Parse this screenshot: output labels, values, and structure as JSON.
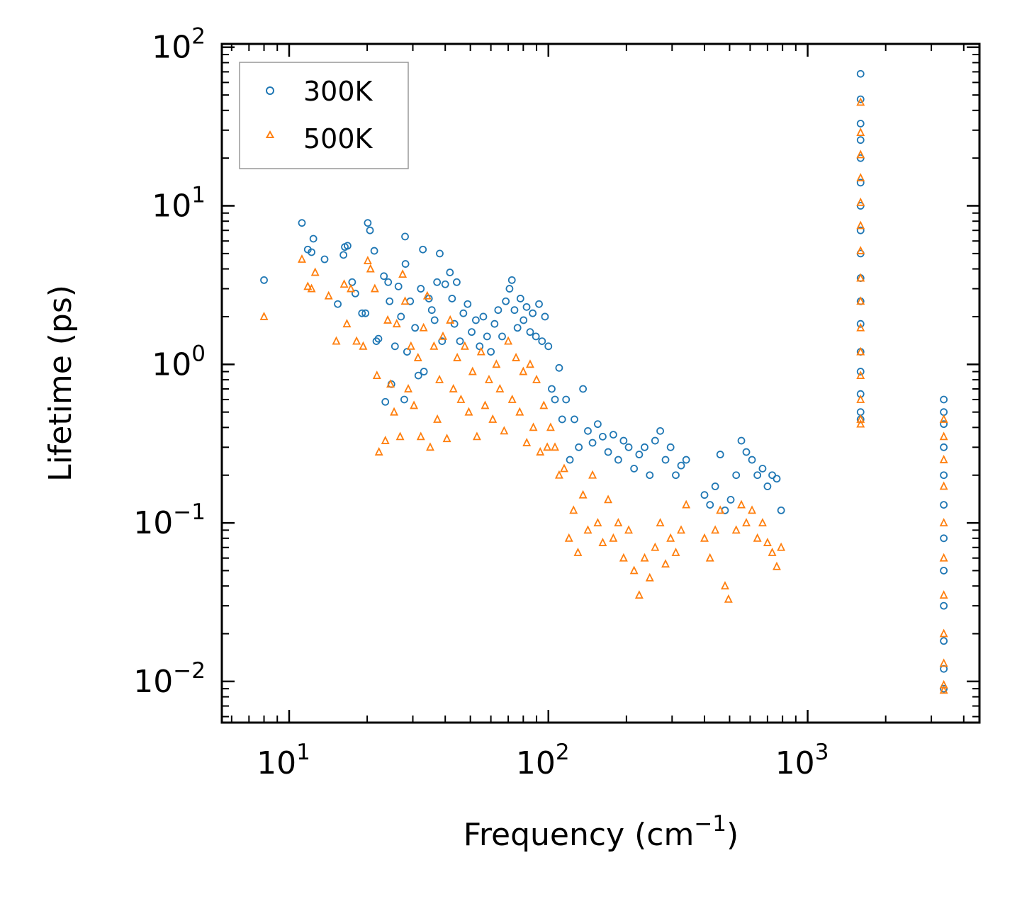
{
  "chart_data": {
    "type": "scatter",
    "title": "",
    "xlabel": "Frequency (cm⁻¹)",
    "ylabel": "Lifetime (ps)",
    "xscale": "log",
    "yscale": "log",
    "xlim": [
      5.5,
      4600
    ],
    "ylim": [
      0.0055,
      105
    ],
    "x_ticks": [
      {
        "value": 10,
        "label": "10",
        "exp": "1"
      },
      {
        "value": 100,
        "label": "10",
        "exp": "2"
      },
      {
        "value": 1000,
        "label": "10",
        "exp": "3"
      }
    ],
    "y_ticks": [
      {
        "value": 0.01,
        "label": "10",
        "exp": "−2"
      },
      {
        "value": 0.1,
        "label": "10",
        "exp": "−1"
      },
      {
        "value": 1,
        "label": "10",
        "exp": "0"
      },
      {
        "value": 10,
        "label": "10",
        "exp": "1"
      },
      {
        "value": 100,
        "label": "10",
        "exp": "2"
      }
    ],
    "legend_position": "top-left",
    "series": [
      {
        "name": "300K",
        "marker": "circle",
        "color": "#1f77b4",
        "points": [
          [
            8.0,
            3.4
          ],
          [
            11.2,
            7.8
          ],
          [
            11.8,
            5.3
          ],
          [
            12.2,
            5.1
          ],
          [
            12.4,
            6.2
          ],
          [
            13.7,
            4.6
          ],
          [
            15.4,
            2.4
          ],
          [
            16.2,
            4.9
          ],
          [
            16.4,
            5.5
          ],
          [
            16.8,
            5.6
          ],
          [
            17.5,
            3.3
          ],
          [
            18.0,
            2.8
          ],
          [
            19.1,
            2.1
          ],
          [
            19.7,
            2.1
          ],
          [
            20.1,
            7.8
          ],
          [
            20.5,
            7.0
          ],
          [
            21.3,
            5.2
          ],
          [
            21.7,
            1.4
          ],
          [
            22.1,
            1.45
          ],
          [
            23.2,
            3.6
          ],
          [
            23.5,
            0.58
          ],
          [
            24.1,
            3.3
          ],
          [
            24.4,
            2.5
          ],
          [
            24.8,
            0.75
          ],
          [
            25.6,
            1.3
          ],
          [
            26.4,
            3.1
          ],
          [
            27.0,
            2.0
          ],
          [
            27.8,
            0.6
          ],
          [
            28.0,
            6.4
          ],
          [
            28.1,
            4.3
          ],
          [
            28.5,
            1.2
          ],
          [
            29.3,
            2.5
          ],
          [
            30.6,
            1.7
          ],
          [
            31.5,
            0.85
          ],
          [
            32.2,
            3.0
          ],
          [
            32.8,
            5.3
          ],
          [
            33.1,
            0.9
          ],
          [
            34.6,
            2.6
          ],
          [
            35.5,
            2.2
          ],
          [
            36.4,
            1.9
          ],
          [
            37.2,
            3.3
          ],
          [
            38.1,
            5.0
          ],
          [
            38.9,
            1.4
          ],
          [
            40.0,
            3.2
          ],
          [
            41.7,
            3.8
          ],
          [
            42.5,
            2.6
          ],
          [
            43.4,
            1.8
          ],
          [
            44.3,
            3.3
          ],
          [
            45.6,
            1.4
          ],
          [
            47.0,
            2.1
          ],
          [
            48.8,
            2.4
          ],
          [
            50.6,
            1.6
          ],
          [
            52.5,
            1.9
          ],
          [
            54.3,
            1.3
          ],
          [
            56.1,
            2.0
          ],
          [
            58.0,
            1.5
          ],
          [
            60.0,
            1.2
          ],
          [
            62.0,
            1.8
          ],
          [
            64.0,
            2.2
          ],
          [
            66.3,
            1.5
          ],
          [
            68.5,
            2.5
          ],
          [
            70.8,
            3.0
          ],
          [
            72.3,
            3.4
          ],
          [
            74.0,
            2.2
          ],
          [
            76.0,
            1.7
          ],
          [
            78.0,
            2.6
          ],
          [
            80.2,
            1.9
          ],
          [
            82.4,
            2.3
          ],
          [
            85.0,
            1.6
          ],
          [
            87.0,
            2.1
          ],
          [
            89.5,
            1.5
          ],
          [
            92.0,
            2.4
          ],
          [
            94.5,
            1.4
          ],
          [
            97.0,
            2.0
          ],
          [
            100.0,
            1.3
          ],
          [
            103.0,
            0.7
          ],
          [
            106.0,
            0.6
          ],
          [
            110.0,
            0.95
          ],
          [
            113.0,
            0.45
          ],
          [
            117.0,
            0.6
          ],
          [
            121.0,
            0.25
          ],
          [
            126.0,
            0.45
          ],
          [
            131.0,
            0.3
          ],
          [
            136.0,
            0.7
          ],
          [
            142.0,
            0.38
          ],
          [
            148.0,
            0.32
          ],
          [
            155.0,
            0.42
          ],
          [
            162.0,
            0.35
          ],
          [
            170.0,
            0.28
          ],
          [
            178.0,
            0.36
          ],
          [
            186.0,
            0.25
          ],
          [
            195.0,
            0.33
          ],
          [
            204.0,
            0.3
          ],
          [
            214.0,
            0.22
          ],
          [
            224.0,
            0.27
          ],
          [
            235.0,
            0.3
          ],
          [
            246.0,
            0.2
          ],
          [
            258.0,
            0.33
          ],
          [
            270.0,
            0.38
          ],
          [
            283.0,
            0.25
          ],
          [
            296.0,
            0.3
          ],
          [
            310.0,
            0.2
          ],
          [
            325.0,
            0.23
          ],
          [
            340.0,
            0.25
          ],
          [
            400.0,
            0.15
          ],
          [
            420.0,
            0.13
          ],
          [
            440.0,
            0.17
          ],
          [
            460.0,
            0.27
          ],
          [
            480.0,
            0.12
          ],
          [
            505.0,
            0.14
          ],
          [
            530.0,
            0.2
          ],
          [
            555.0,
            0.33
          ],
          [
            580.0,
            0.28
          ],
          [
            610.0,
            0.25
          ],
          [
            640.0,
            0.2
          ],
          [
            670.0,
            0.22
          ],
          [
            700.0,
            0.17
          ],
          [
            730.0,
            0.2
          ],
          [
            760.0,
            0.19
          ],
          [
            790.0,
            0.12
          ],
          [
            1600.0,
            68.0
          ],
          [
            1600.0,
            47.0
          ],
          [
            1600.0,
            33.0
          ],
          [
            1600.0,
            26.0
          ],
          [
            1600.0,
            20.0
          ],
          [
            1600.0,
            14.0
          ],
          [
            1600.0,
            10.0
          ],
          [
            1600.0,
            7.0
          ],
          [
            1600.0,
            5.0
          ],
          [
            1600.0,
            3.5
          ],
          [
            1600.0,
            2.5
          ],
          [
            1600.0,
            1.8
          ],
          [
            1600.0,
            1.2
          ],
          [
            1600.0,
            0.9
          ],
          [
            1600.0,
            0.65
          ],
          [
            1600.0,
            0.5
          ],
          [
            1600.0,
            0.45
          ],
          [
            3350.0,
            0.6
          ],
          [
            3350.0,
            0.5
          ],
          [
            3350.0,
            0.42
          ],
          [
            3350.0,
            0.3
          ],
          [
            3350.0,
            0.2
          ],
          [
            3350.0,
            0.13
          ],
          [
            3350.0,
            0.08
          ],
          [
            3350.0,
            0.05
          ],
          [
            3350.0,
            0.03
          ],
          [
            3350.0,
            0.018
          ],
          [
            3350.0,
            0.012
          ],
          [
            3350.0,
            0.009
          ]
        ]
      },
      {
        "name": "500K",
        "marker": "triangle",
        "color": "#ff7f0e",
        "points": [
          [
            8.0,
            2.0
          ],
          [
            11.2,
            4.6
          ],
          [
            11.8,
            3.1
          ],
          [
            12.2,
            3.0
          ],
          [
            12.6,
            3.8
          ],
          [
            14.2,
            2.7
          ],
          [
            15.2,
            1.4
          ],
          [
            16.3,
            3.2
          ],
          [
            16.7,
            1.8
          ],
          [
            17.3,
            3.0
          ],
          [
            18.2,
            1.4
          ],
          [
            19.3,
            1.3
          ],
          [
            20.1,
            4.5
          ],
          [
            20.6,
            4.0
          ],
          [
            21.4,
            3.0
          ],
          [
            21.8,
            0.85
          ],
          [
            22.2,
            0.28
          ],
          [
            23.5,
            0.33
          ],
          [
            24.0,
            1.9
          ],
          [
            24.6,
            0.75
          ],
          [
            25.4,
            0.5
          ],
          [
            26.0,
            1.8
          ],
          [
            26.8,
            0.35
          ],
          [
            27.4,
            3.7
          ],
          [
            28.0,
            2.5
          ],
          [
            28.8,
            0.7
          ],
          [
            29.5,
            1.3
          ],
          [
            30.3,
            0.55
          ],
          [
            31.4,
            1.1
          ],
          [
            32.2,
            0.35
          ],
          [
            33.0,
            1.7
          ],
          [
            34.1,
            2.7
          ],
          [
            35.0,
            0.3
          ],
          [
            36.2,
            1.3
          ],
          [
            37.3,
            0.45
          ],
          [
            38.0,
            0.8
          ],
          [
            39.2,
            1.5
          ],
          [
            40.6,
            0.34
          ],
          [
            41.8,
            1.9
          ],
          [
            43.0,
            0.7
          ],
          [
            44.5,
            1.1
          ],
          [
            46.0,
            0.6
          ],
          [
            47.6,
            1.3
          ],
          [
            49.3,
            0.5
          ],
          [
            51.0,
            0.9
          ],
          [
            53.0,
            0.35
          ],
          [
            55.0,
            1.2
          ],
          [
            57.0,
            0.55
          ],
          [
            59.0,
            0.8
          ],
          [
            61.0,
            0.45
          ],
          [
            63.0,
            1.0
          ],
          [
            65.0,
            0.7
          ],
          [
            67.5,
            0.38
          ],
          [
            70.0,
            1.4
          ],
          [
            72.5,
            0.6
          ],
          [
            75.0,
            1.1
          ],
          [
            77.5,
            0.5
          ],
          [
            80.0,
            0.9
          ],
          [
            82.5,
            0.32
          ],
          [
            85.0,
            1.0
          ],
          [
            87.5,
            0.4
          ],
          [
            90.0,
            0.8
          ],
          [
            93.0,
            0.28
          ],
          [
            96.0,
            0.55
          ],
          [
            99.0,
            0.3
          ],
          [
            102.0,
            0.4
          ],
          [
            106.0,
            0.3
          ],
          [
            110.0,
            0.2
          ],
          [
            115.0,
            0.22
          ],
          [
            120.0,
            0.08
          ],
          [
            125.0,
            0.12
          ],
          [
            130.0,
            0.065
          ],
          [
            136.0,
            0.15
          ],
          [
            142.0,
            0.09
          ],
          [
            148.0,
            0.2
          ],
          [
            155.0,
            0.1
          ],
          [
            162.0,
            0.075
          ],
          [
            170.0,
            0.14
          ],
          [
            178.0,
            0.08
          ],
          [
            186.0,
            0.1
          ],
          [
            195.0,
            0.06
          ],
          [
            204.0,
            0.09
          ],
          [
            214.0,
            0.05
          ],
          [
            224.0,
            0.035
          ],
          [
            235.0,
            0.06
          ],
          [
            246.0,
            0.045
          ],
          [
            258.0,
            0.07
          ],
          [
            270.0,
            0.1
          ],
          [
            283.0,
            0.055
          ],
          [
            296.0,
            0.08
          ],
          [
            310.0,
            0.065
          ],
          [
            325.0,
            0.09
          ],
          [
            340.0,
            0.13
          ],
          [
            400.0,
            0.08
          ],
          [
            420.0,
            0.06
          ],
          [
            440.0,
            0.09
          ],
          [
            460.0,
            0.12
          ],
          [
            480.0,
            0.04
          ],
          [
            495.0,
            0.033
          ],
          [
            530.0,
            0.09
          ],
          [
            555.0,
            0.13
          ],
          [
            580.0,
            0.1
          ],
          [
            610.0,
            0.12
          ],
          [
            640.0,
            0.08
          ],
          [
            670.0,
            0.1
          ],
          [
            700.0,
            0.075
          ],
          [
            730.0,
            0.065
          ],
          [
            760.0,
            0.053
          ],
          [
            790.0,
            0.07
          ],
          [
            1600.0,
            45.0
          ],
          [
            1600.0,
            29.0
          ],
          [
            1600.0,
            21.0
          ],
          [
            1600.0,
            15.0
          ],
          [
            1600.0,
            10.5
          ],
          [
            1600.0,
            7.5
          ],
          [
            1600.0,
            5.2
          ],
          [
            1600.0,
            3.5
          ],
          [
            1600.0,
            2.5
          ],
          [
            1600.0,
            1.7
          ],
          [
            1600.0,
            1.2
          ],
          [
            1600.0,
            0.85
          ],
          [
            1600.0,
            0.6
          ],
          [
            1600.0,
            0.45
          ],
          [
            1600.0,
            0.42
          ],
          [
            3350.0,
            0.45
          ],
          [
            3350.0,
            0.35
          ],
          [
            3350.0,
            0.25
          ],
          [
            3350.0,
            0.17
          ],
          [
            3350.0,
            0.1
          ],
          [
            3350.0,
            0.06
          ],
          [
            3350.0,
            0.035
          ],
          [
            3350.0,
            0.02
          ],
          [
            3350.0,
            0.013
          ],
          [
            3350.0,
            0.0095
          ],
          [
            3350.0,
            0.0088
          ]
        ]
      }
    ]
  }
}
